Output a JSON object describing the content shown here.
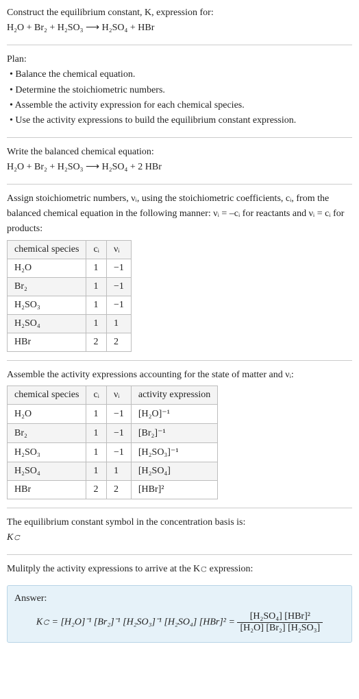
{
  "intro": {
    "prompt": "Construct the equilibrium constant, K, expression for:",
    "equation": "H₂O + Br₂ + H₂SO₃ ⟶ H₂SO₄ + HBr"
  },
  "plan": {
    "heading": "Plan:",
    "items": [
      "• Balance the chemical equation.",
      "• Determine the stoichiometric numbers.",
      "• Assemble the activity expression for each chemical species.",
      "• Use the activity expressions to build the equilibrium constant expression."
    ]
  },
  "balanced": {
    "heading": "Write the balanced chemical equation:",
    "equation": "H₂O + Br₂ + H₂SO₃ ⟶ H₂SO₄ + 2 HBr"
  },
  "stoich": {
    "text": "Assign stoichiometric numbers, νᵢ, using the stoichiometric coefficients, cᵢ, from the balanced chemical equation in the following manner: νᵢ = –cᵢ for reactants and νᵢ = cᵢ for products:",
    "headers": [
      "chemical species",
      "cᵢ",
      "νᵢ"
    ],
    "rows": [
      [
        "H₂O",
        "1",
        "−1"
      ],
      [
        "Br₂",
        "1",
        "−1"
      ],
      [
        "H₂SO₃",
        "1",
        "−1"
      ],
      [
        "H₂SO₄",
        "1",
        "1"
      ],
      [
        "HBr",
        "2",
        "2"
      ]
    ]
  },
  "activity": {
    "text": "Assemble the activity expressions accounting for the state of matter and νᵢ:",
    "headers": [
      "chemical species",
      "cᵢ",
      "νᵢ",
      "activity expression"
    ],
    "rows": [
      {
        "c0": "H₂O",
        "c1": "1",
        "c2": "−1",
        "c3": "[H₂O]⁻¹"
      },
      {
        "c0": "Br₂",
        "c1": "1",
        "c2": "−1",
        "c3": "[Br₂]⁻¹"
      },
      {
        "c0": "H₂SO₃",
        "c1": "1",
        "c2": "−1",
        "c3": "[H₂SO₃]⁻¹"
      },
      {
        "c0": "H₂SO₄",
        "c1": "1",
        "c2": "1",
        "c3": "[H₂SO₄]"
      },
      {
        "c0": "HBr",
        "c1": "2",
        "c2": "2",
        "c3": "[HBr]²"
      }
    ]
  },
  "eqsymbol": {
    "text": "The equilibrium constant symbol in the concentration basis is:",
    "symbol": "K𝚌"
  },
  "multiply": {
    "text": "Mulitply the activity expressions to arrive at the K𝚌 expression:"
  },
  "answer": {
    "label": "Answer:",
    "lhs": "K𝚌 = [H₂O]⁻¹ [Br₂]⁻¹ [H₂SO₃]⁻¹ [H₂SO₄] [HBr]² = ",
    "num": "[H₂SO₄] [HBr]²",
    "den": "[H₂O] [Br₂] [H₂SO₃]"
  },
  "colors": {
    "text": "#222222",
    "rule": "#cccccc",
    "border": "#bdbdbd",
    "stripe": "#f4f4f4",
    "answer_bg": "#e6f2f9",
    "answer_border": "#b8d4e6"
  }
}
